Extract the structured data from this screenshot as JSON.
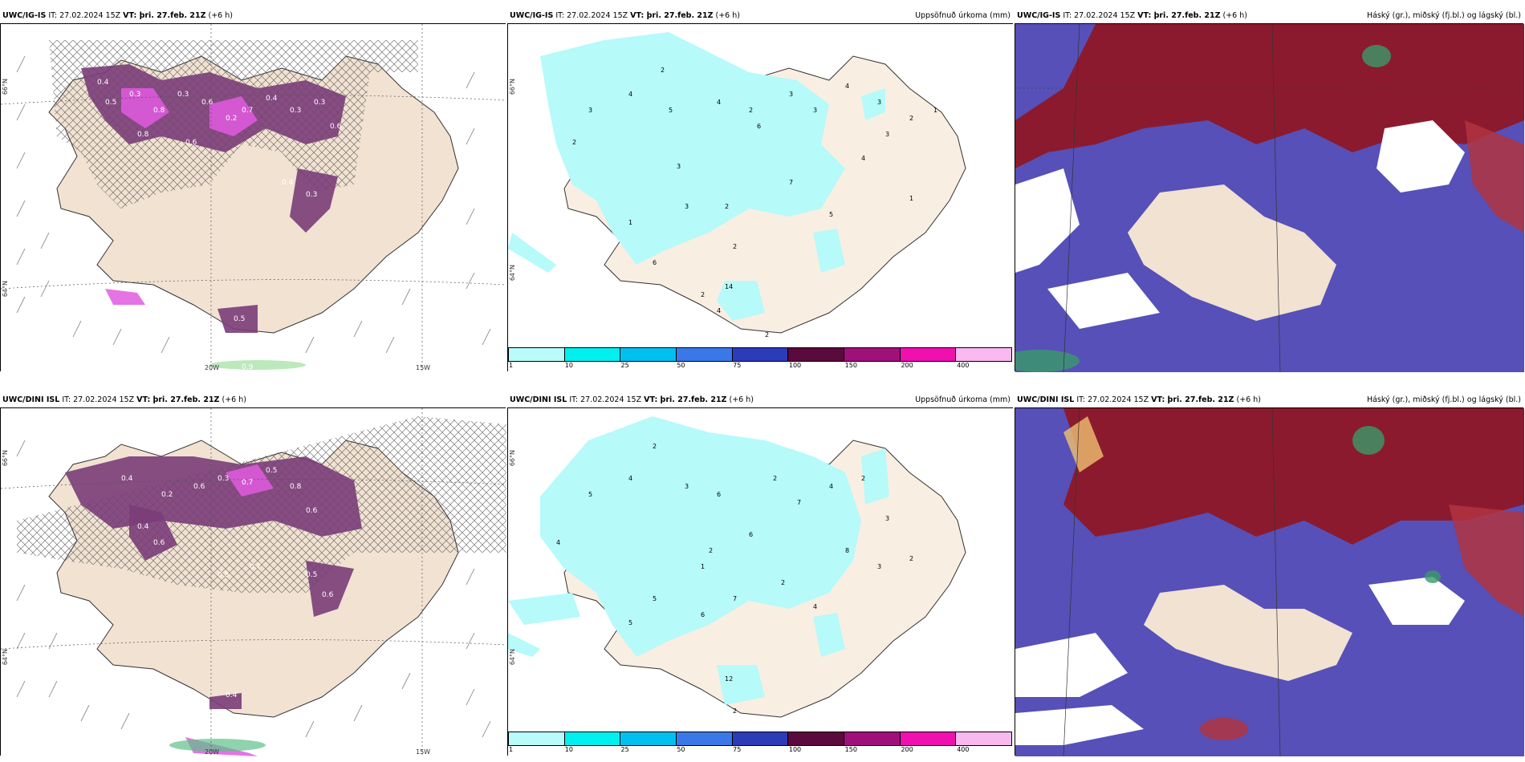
{
  "rows": [
    {
      "model": "UWC/IG-IS",
      "panels": [
        {
          "model_label": "UWC/IG-IS",
          "it_text": "IT: 27.02.2024 15Z",
          "vt_text": "VT: þri. 27.feb. 21Z",
          "lead": "(+6 h)",
          "right_title": ""
        },
        {
          "model_label": "UWC/IG-IS",
          "it_text": "IT: 27.02.2024 15Z",
          "vt_text": "VT: þri. 27.feb. 21Z",
          "lead": "(+6 h)",
          "right_title": "Uppsöfnuð úrkoma (mm)"
        },
        {
          "model_label": "UWC/IG-IS",
          "it_text": "IT: 27.02.2024 15Z",
          "vt_text": "VT: þri. 27.feb. 21Z",
          "lead": "(+6 h)",
          "right_title": "Háský (gr.), miðský (fj.bl.) og lágský (bl.)"
        }
      ]
    },
    {
      "model": "UWC/DINI ISL",
      "panels": [
        {
          "model_label": "UWC/DINI ISL",
          "it_text": "IT: 27.02.2024 15Z",
          "vt_text": "VT: þri. 27.feb. 21Z",
          "lead": "(+6 h)",
          "right_title": ""
        },
        {
          "model_label": "UWC/DINI ISL",
          "it_text": "IT: 27.02.2024 15Z",
          "vt_text": "VT: þri. 27.feb. 21Z",
          "lead": "(+6 h)",
          "right_title": "Uppsöfnuð úrkoma (mm)"
        },
        {
          "model_label": "UWC/DINI ISL",
          "it_text": "IT: 27.02.2024 15Z",
          "vt_text": "VT: þri. 27.feb. 21Z",
          "lead": "(+6 h)",
          "right_title": "Háský (gr.), miðský (fj.bl.) og lágský (bl.)"
        }
      ]
    }
  ],
  "axis_labels": {
    "lat_66": "66°N",
    "lat_64": "64°N",
    "lon_20": "20W",
    "lon_15": "15W"
  },
  "colorbar": {
    "ticks": [
      "1",
      "10",
      "25",
      "50",
      "75",
      "100",
      "150",
      "200",
      "400"
    ],
    "colors": [
      "#b9fbfb",
      "#00f0f0",
      "#00c0f0",
      "#3a78e8",
      "#2c3cb8",
      "#5a0a3c",
      "#a0107a",
      "#f010b0",
      "#f8b8f0"
    ]
  },
  "colors": {
    "land": "#f1e2d2",
    "snow_purple": "#7a3d78",
    "snow_magenta": "#e05ae0",
    "precip_cyan": "#b6fafa",
    "cloud_low": "#5650b8",
    "cloud_high": "#8c1a2e",
    "cloud_mid": "#3a9a6a"
  },
  "snow_labels_top": [
    "0.4",
    "0.3",
    "0.5",
    "0.8",
    "0.3",
    "0.6",
    "0.2",
    "0.7",
    "0.4",
    "0.3",
    "0.3",
    "0.6",
    "0.8",
    "0.6",
    "0.4",
    "0.3",
    "0.5",
    "0.6",
    "0.9"
  ],
  "snow_labels_bottom": [
    "0.4",
    "0.2",
    "0.6",
    "0.3",
    "0.7",
    "0.5",
    "0.8",
    "0.6",
    "0.4",
    "0.6",
    "0.5",
    "0.7",
    "0.5",
    "0.6",
    "0.4"
  ],
  "precip_labels_top": [
    "2",
    "4",
    "3",
    "2",
    "5",
    "4",
    "2",
    "3",
    "6",
    "3",
    "4",
    "3",
    "2",
    "1",
    "3",
    "4",
    "7",
    "2",
    "3",
    "5",
    "2",
    "1",
    "6",
    "2",
    "4",
    "3",
    "1",
    "14",
    "2"
  ],
  "precip_labels_bottom": [
    "2",
    "4",
    "5",
    "4",
    "3",
    "6",
    "2",
    "7",
    "4",
    "2",
    "3",
    "6",
    "2",
    "1",
    "5",
    "8",
    "3",
    "2",
    "7",
    "2",
    "4",
    "6",
    "5",
    "12",
    "2"
  ]
}
